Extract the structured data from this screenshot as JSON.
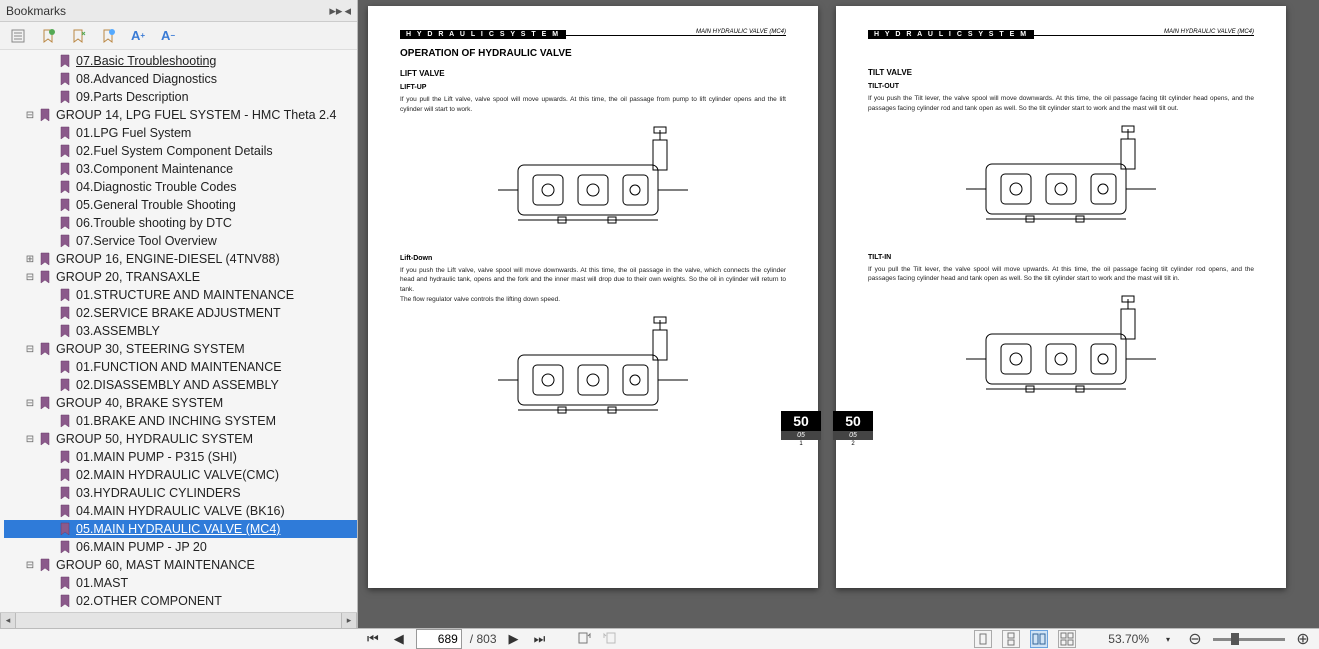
{
  "bookmarks": {
    "title": "Bookmarks",
    "toolbar_icons": [
      "settings",
      "collapse-all",
      "add",
      "add-sub",
      "font-inc",
      "font-dec"
    ],
    "items": [
      {
        "indent": 2,
        "expand": "",
        "label": "07.Basic Troubleshooting",
        "underline": true
      },
      {
        "indent": 2,
        "expand": "",
        "label": "08.Advanced Diagnostics"
      },
      {
        "indent": 2,
        "expand": "",
        "label": "09.Parts Description"
      },
      {
        "indent": 1,
        "expand": "-",
        "label": "GROUP 14,  LPG FUEL SYSTEM  - HMC Theta 2.4"
      },
      {
        "indent": 2,
        "expand": "",
        "label": "01.LPG Fuel System"
      },
      {
        "indent": 2,
        "expand": "",
        "label": "02.Fuel System Component Details"
      },
      {
        "indent": 2,
        "expand": "",
        "label": "03.Component Maintenance"
      },
      {
        "indent": 2,
        "expand": "",
        "label": "04.Diagnostic Trouble Codes"
      },
      {
        "indent": 2,
        "expand": "",
        "label": "05.General Trouble Shooting"
      },
      {
        "indent": 2,
        "expand": "",
        "label": "06.Trouble shooting by DTC"
      },
      {
        "indent": 2,
        "expand": "",
        "label": "07.Service Tool Overview"
      },
      {
        "indent": 1,
        "expand": "+",
        "label": "GROUP 16, ENGINE-DIESEL (4TNV88)"
      },
      {
        "indent": 1,
        "expand": "-",
        "label": "GROUP 20,  TRANSAXLE"
      },
      {
        "indent": 2,
        "expand": "",
        "label": "01.STRUCTURE AND MAINTENANCE"
      },
      {
        "indent": 2,
        "expand": "",
        "label": "02.SERVICE BRAKE ADJUSTMENT"
      },
      {
        "indent": 2,
        "expand": "",
        "label": "03.ASSEMBLY"
      },
      {
        "indent": 1,
        "expand": "-",
        "label": "GROUP 30,  STEERING SYSTEM"
      },
      {
        "indent": 2,
        "expand": "",
        "label": "01.FUNCTION AND MAINTENANCE"
      },
      {
        "indent": 2,
        "expand": "",
        "label": "02.DISASSEMBLY AND ASSEMBLY"
      },
      {
        "indent": 1,
        "expand": "-",
        "label": "GROUP 40,  BRAKE SYSTEM"
      },
      {
        "indent": 2,
        "expand": "",
        "label": "01.BRAKE AND INCHING SYSTEM"
      },
      {
        "indent": 1,
        "expand": "-",
        "label": "GROUP 50, HYDRAULIC SYSTEM"
      },
      {
        "indent": 2,
        "expand": "",
        "label": "01.MAIN PUMP - P315 (SHI)"
      },
      {
        "indent": 2,
        "expand": "",
        "label": "02.MAIN HYDRAULIC VALVE(CMC)"
      },
      {
        "indent": 2,
        "expand": "",
        "label": "03.HYDRAULIC CYLINDERS"
      },
      {
        "indent": 2,
        "expand": "",
        "label": "04.MAIN HYDRAULIC VALVE (BK16)"
      },
      {
        "indent": 2,
        "expand": "",
        "label": "05.MAIN HYDRAULIC VALVE (MC4)",
        "selected": true
      },
      {
        "indent": 2,
        "expand": "",
        "label": "06.MAIN PUMP - JP 20"
      },
      {
        "indent": 1,
        "expand": "-",
        "label": "GROUP 60,  MAST MAINTENANCE"
      },
      {
        "indent": 2,
        "expand": "",
        "label": "01.MAST"
      },
      {
        "indent": 2,
        "expand": "",
        "label": "02.OTHER COMPONENT"
      }
    ]
  },
  "pages": {
    "left": {
      "header_section": "H Y D R A U L I C   S Y S T E M",
      "header_sub": "MAIN  HYDRAULIC  VALVE (MC4)",
      "title": "OPERATION  OF  HYDRAULIC  VALVE",
      "sub1": "LIFT VALVE",
      "sub1a": "LIFT-UP",
      "body1": "If you pull the Lift valve, valve spool will move upwards. At this time, the oil passage from pump to lift cylinder opens and the lift cylinder will start to work.",
      "sub1b": "Lift-Down",
      "body2": "If you push the Lift valve, valve spool will move downwards. At this time, the oil passage in the valve, which connects the cylinder head and hydraulic tank, opens and the fork and the inner mast will drop due to their own weights. So the oil in cylinder will return to tank.\nThe flow regulator valve controls the lifting down speed.",
      "tab_num": "50",
      "tab_sec": "05",
      "tab_page": "1"
    },
    "right": {
      "header_section": "H Y D R A U L I C   S Y S T E M",
      "header_sub": "MAIN  HYDRAULIC  VALVE (MC4)",
      "sub1": "TILT  VALVE",
      "sub1a": "TILT-OUT",
      "body1": "If you push the Tilt lever, the valve spool will move downwards. At this time, the oil passage facing tilt cylinder head opens, and the passages facing cylinder rod and tank open as well. So the tilt cylinder start to work and the mast will tilt out.",
      "sub1b": "TILT-IN",
      "body2": "If you pull the Tilt lever, the valve spool will move upwards. At this time, the oil passage facing tilt cylinder rod opens, and the passages facing cylinder head and tank open as well. So the tilt cylinder start to work and the mast will tilt in.",
      "tab_num": "50",
      "tab_sec": "05",
      "tab_page": "2"
    }
  },
  "bottombar": {
    "page_current": "689",
    "page_total": "/ 803",
    "zoom": "53.70%"
  }
}
